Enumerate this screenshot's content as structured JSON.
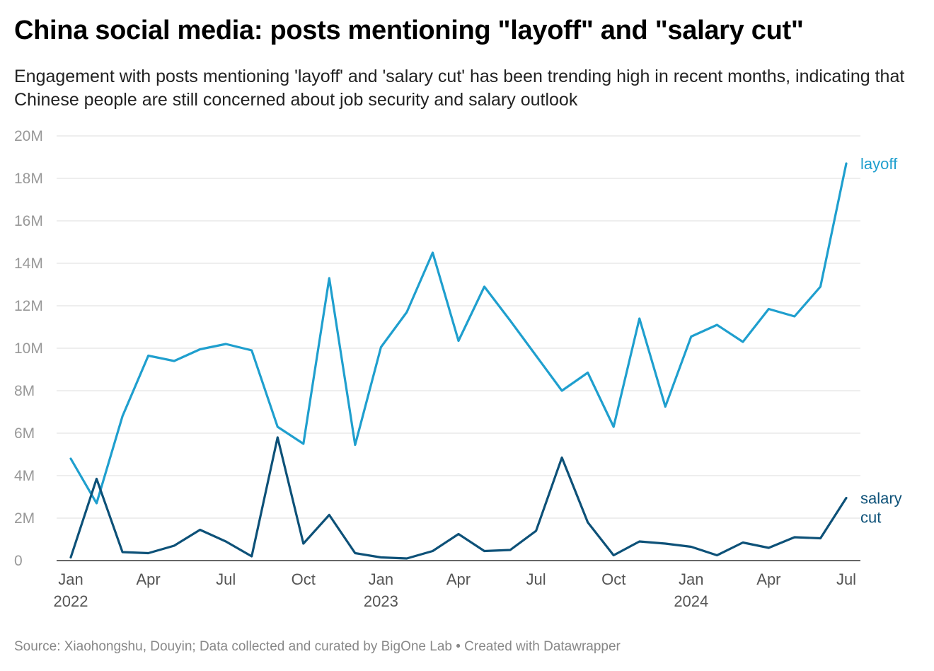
{
  "header": {
    "title": "China social media: posts mentioning \"layoff\" and \"salary cut\"",
    "subtitle": "Engagement with posts mentioning 'layoff' and 'salary cut' has been trending high in recent months, indicating that Chinese people are still concerned about job security and salary outlook"
  },
  "footer": {
    "source": "Source: Xiaohongshu, Douyin; Data collected and curated by BigOne Lab • Created with Datawrapper"
  },
  "chart_data": {
    "type": "line",
    "x": [
      "2022-01",
      "2022-02",
      "2022-03",
      "2022-04",
      "2022-05",
      "2022-06",
      "2022-07",
      "2022-08",
      "2022-09",
      "2022-10",
      "2022-11",
      "2022-12",
      "2023-01",
      "2023-02",
      "2023-03",
      "2023-04",
      "2023-05",
      "2023-06",
      "2023-07",
      "2023-08",
      "2023-09",
      "2023-10",
      "2023-11",
      "2023-12",
      "2024-01",
      "2024-02",
      "2024-03",
      "2024-04",
      "2024-05",
      "2024-06",
      "2024-07"
    ],
    "series": [
      {
        "name": "layoff",
        "color": "#1f9fce",
        "values": [
          4.8,
          2.7,
          6.8,
          9.65,
          9.4,
          9.95,
          10.2,
          9.9,
          6.3,
          5.5,
          13.3,
          5.45,
          10.05,
          11.7,
          14.5,
          10.35,
          12.9,
          11.3,
          9.65,
          8.0,
          8.85,
          6.3,
          11.4,
          7.25,
          10.55,
          11.1,
          10.3,
          11.85,
          11.5,
          12.9,
          18.7
        ]
      },
      {
        "name": "salary cut",
        "color": "#0d5178",
        "values": [
          0.15,
          3.85,
          0.4,
          0.35,
          0.7,
          1.45,
          0.9,
          0.2,
          5.8,
          0.8,
          2.15,
          0.35,
          0.15,
          0.1,
          0.45,
          1.25,
          0.45,
          0.5,
          1.4,
          4.85,
          1.8,
          0.25,
          0.9,
          0.8,
          0.65,
          0.25,
          0.85,
          0.6,
          1.1,
          1.05,
          2.95
        ]
      }
    ],
    "series_labels": [
      {
        "series": "layoff",
        "lines": [
          "layoff"
        ]
      },
      {
        "series": "salary cut",
        "lines": [
          "salary",
          "cut"
        ]
      }
    ],
    "y_ticks": [
      {
        "value": 0,
        "label": "0"
      },
      {
        "value": 2,
        "label": "2M"
      },
      {
        "value": 4,
        "label": "4M"
      },
      {
        "value": 6,
        "label": "6M"
      },
      {
        "value": 8,
        "label": "8M"
      },
      {
        "value": 10,
        "label": "10M"
      },
      {
        "value": 12,
        "label": "12M"
      },
      {
        "value": 14,
        "label": "14M"
      },
      {
        "value": 16,
        "label": "16M"
      },
      {
        "value": 18,
        "label": "18M"
      },
      {
        "value": 20,
        "label": "20M"
      }
    ],
    "x_ticks": [
      {
        "index": 0,
        "label": "Jan",
        "year": "2022"
      },
      {
        "index": 3,
        "label": "Apr"
      },
      {
        "index": 6,
        "label": "Jul"
      },
      {
        "index": 9,
        "label": "Oct"
      },
      {
        "index": 12,
        "label": "Jan",
        "year": "2023"
      },
      {
        "index": 15,
        "label": "Apr"
      },
      {
        "index": 18,
        "label": "Jul"
      },
      {
        "index": 21,
        "label": "Oct"
      },
      {
        "index": 24,
        "label": "Jan",
        "year": "2024"
      },
      {
        "index": 27,
        "label": "Apr"
      },
      {
        "index": 30,
        "label": "Jul"
      }
    ],
    "ylim": [
      0,
      20
    ],
    "grid": true
  }
}
